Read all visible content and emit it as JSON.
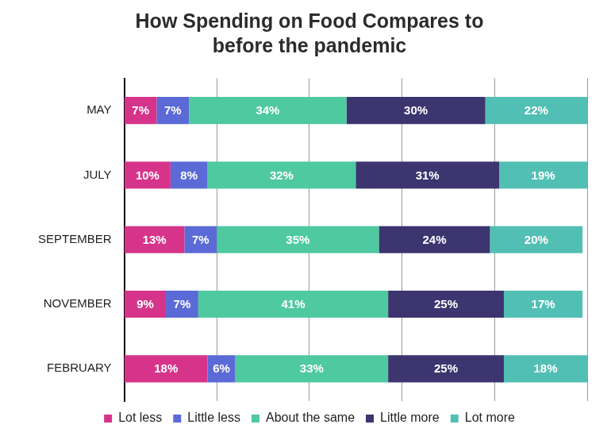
{
  "chart_data": {
    "type": "bar",
    "title": [
      "How Spending on Food Compares to",
      "before the pandemic"
    ],
    "orientation": "horizontal",
    "stacked": true,
    "data_labels": true,
    "legend": "bottom",
    "grid": true,
    "tick_labels": "y",
    "categories": [
      "MAY",
      "JULY",
      "SEPTEMBER",
      "NOVEMBER",
      "FEBRUARY"
    ],
    "xlim": [
      0,
      100
    ],
    "xticks": [
      0,
      20,
      40,
      60,
      80,
      100
    ],
    "series": [
      {
        "name": "Lot less",
        "color": "#d6348a",
        "values": [
          7,
          10,
          13,
          9,
          18
        ],
        "value_labels": [
          "7%",
          "10%",
          "13%",
          "9%",
          "18%"
        ]
      },
      {
        "name": "Little less",
        "color": "#5b6ad6",
        "values": [
          7,
          8,
          7,
          7,
          6
        ],
        "value_labels": [
          "7%",
          "8%",
          "7%",
          "7%",
          "6%"
        ]
      },
      {
        "name": "About the same",
        "color": "#4fc99f",
        "values": [
          34,
          32,
          35,
          41,
          33
        ],
        "value_labels": [
          "34%",
          "32%",
          "35%",
          "41%",
          "33%"
        ]
      },
      {
        "name": "Little more",
        "color": "#3c356f",
        "values": [
          30,
          31,
          24,
          25,
          25
        ],
        "value_labels": [
          "30%",
          "31%",
          "24%",
          "25%",
          "25%"
        ]
      },
      {
        "name": "Lot more",
        "color": "#52bfb4",
        "values": [
          22,
          19,
          20,
          17,
          18
        ],
        "value_labels": [
          "22%",
          "19%",
          "20%",
          "17%",
          "18%"
        ]
      }
    ]
  }
}
